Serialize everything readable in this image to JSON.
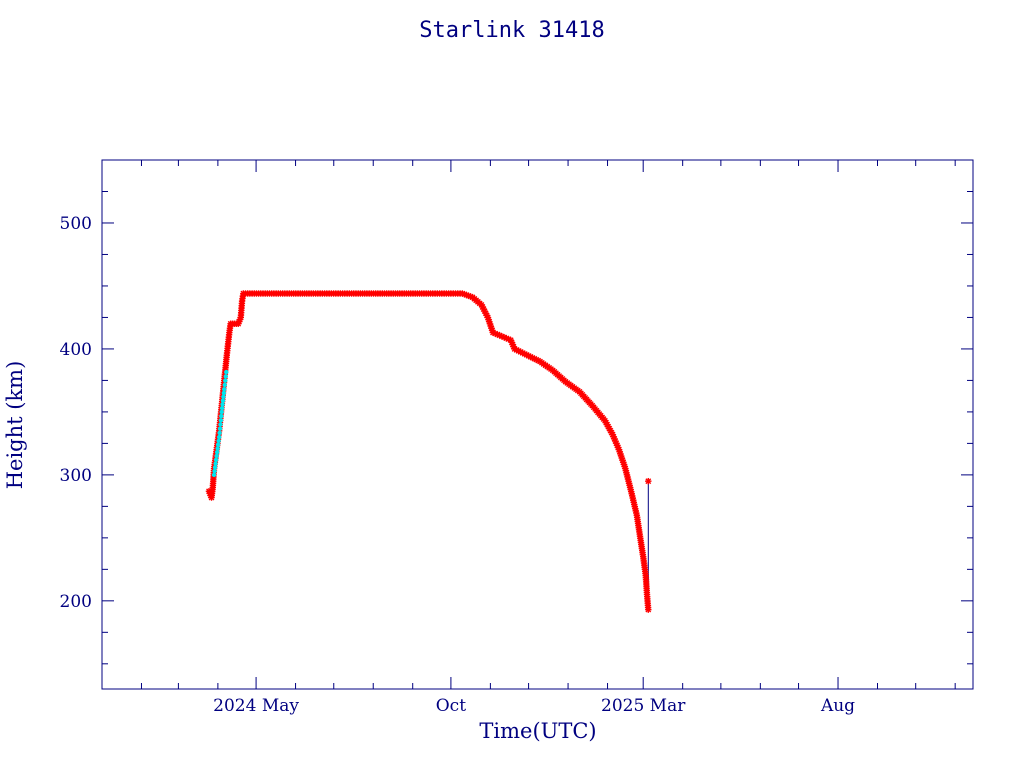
{
  "chart_data": {
    "type": "scatter",
    "title": "Starlink 31418",
    "xlabel": "Time(UTC)",
    "ylabel": "Height (km)",
    "xlim": [
      "2024-01-01",
      "2025-11-15"
    ],
    "ylim": [
      130,
      550
    ],
    "x_ticks": [
      {
        "date": "2024-05-01",
        "label": "2024 May"
      },
      {
        "date": "2024-10-01",
        "label": "Oct"
      },
      {
        "date": "2025-03-01",
        "label": "2025 Mar"
      },
      {
        "date": "2025-08-01",
        "label": "Aug"
      }
    ],
    "y_ticks": [
      200,
      300,
      400,
      500
    ],
    "grid": false,
    "colors": {
      "axes": "#000080",
      "marker": "#ff0000",
      "marker_alt": "#00e5ee",
      "line": "#000080"
    },
    "series": [
      {
        "marker": "red-star",
        "points": [
          [
            "2024-03-25",
            287
          ],
          [
            "2024-03-27",
            282
          ],
          [
            "2024-03-28",
            290
          ],
          [
            "2024-03-29",
            305
          ],
          [
            "2024-03-31",
            320
          ],
          [
            "2024-04-02",
            335
          ],
          [
            "2024-04-04",
            355
          ],
          [
            "2024-04-06",
            375
          ],
          [
            "2024-04-08",
            395
          ],
          [
            "2024-04-10",
            413
          ],
          [
            "2024-04-11",
            420
          ],
          [
            "2024-04-14",
            420
          ],
          [
            "2024-04-17",
            420
          ],
          [
            "2024-04-19",
            425
          ],
          [
            "2024-04-20",
            438
          ],
          [
            "2024-04-21",
            444
          ],
          [
            "2024-05-15",
            444
          ],
          [
            "2024-06-15",
            444
          ],
          [
            "2024-07-15",
            444
          ],
          [
            "2024-08-15",
            444
          ],
          [
            "2024-09-15",
            444
          ],
          [
            "2024-10-01",
            444
          ],
          [
            "2024-10-10",
            444
          ],
          [
            "2024-10-18",
            441
          ],
          [
            "2024-10-25",
            435
          ],
          [
            "2024-10-30",
            425
          ],
          [
            "2024-11-03",
            413
          ],
          [
            "2024-11-10",
            410
          ],
          [
            "2024-11-17",
            407
          ],
          [
            "2024-11-20",
            400
          ],
          [
            "2024-11-28",
            396
          ],
          [
            "2024-12-10",
            390
          ],
          [
            "2024-12-20",
            383
          ],
          [
            "2024-12-30",
            374
          ],
          [
            "2025-01-10",
            366
          ],
          [
            "2025-01-20",
            355
          ],
          [
            "2025-01-30",
            343
          ],
          [
            "2025-02-05",
            332
          ],
          [
            "2025-02-10",
            320
          ],
          [
            "2025-02-15",
            305
          ],
          [
            "2025-02-20",
            285
          ],
          [
            "2025-02-24",
            268
          ],
          [
            "2025-02-27",
            248
          ],
          [
            "2025-03-01",
            235
          ],
          [
            "2025-03-03",
            220
          ],
          [
            "2025-03-04",
            205
          ],
          [
            "2025-03-05",
            193
          ],
          [
            "2025-03-05",
            295
          ]
        ]
      },
      {
        "marker": "cyan-dot",
        "points": [
          [
            "2024-03-29",
            300
          ],
          [
            "2024-03-31",
            315
          ],
          [
            "2024-04-02",
            330
          ],
          [
            "2024-04-04",
            350
          ],
          [
            "2024-04-06",
            368
          ],
          [
            "2024-04-08",
            385
          ]
        ]
      }
    ]
  }
}
